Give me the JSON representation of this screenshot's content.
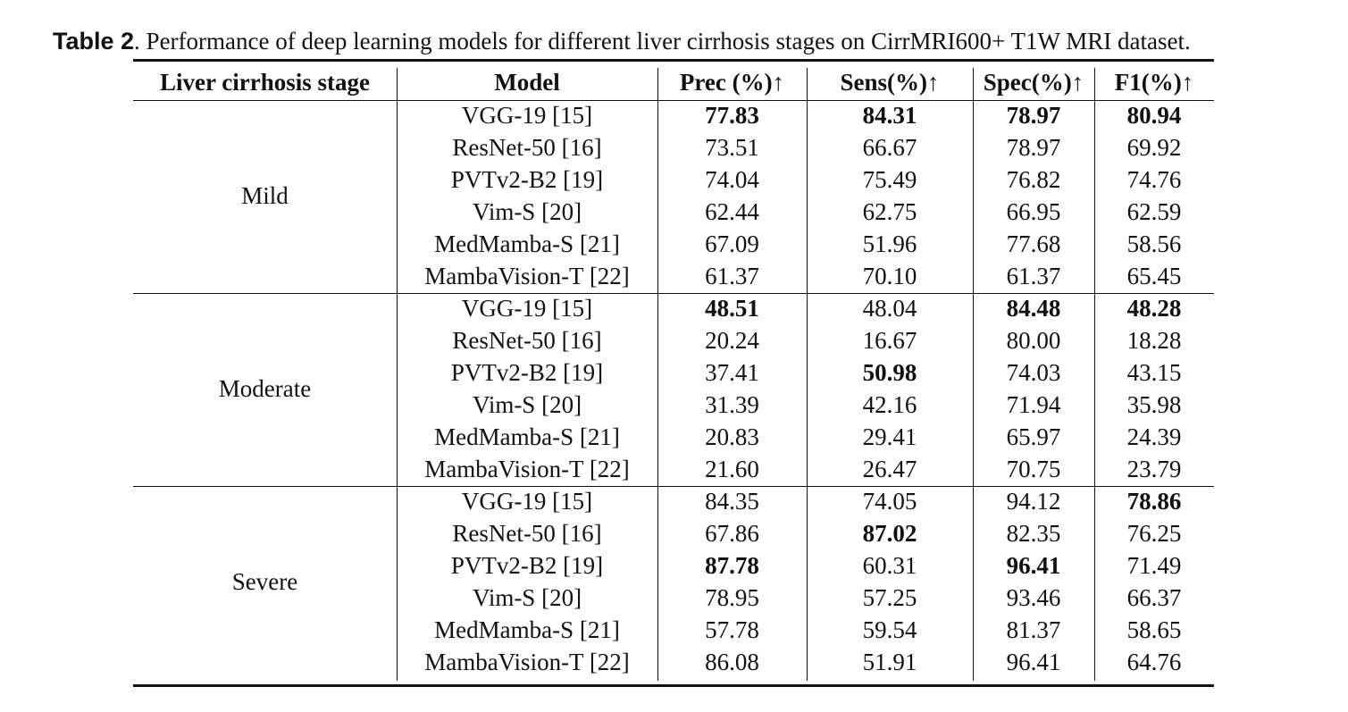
{
  "caption": {
    "label": "Table 2",
    "text": ". Performance of deep learning models for different liver cirrhosis stages on CirrMRI600+ T1W MRI dataset."
  },
  "table": {
    "headers": [
      "Liver cirrhosis stage",
      "Model",
      "Prec (%)↑",
      "Sens(%)↑",
      "Spec(%)↑",
      "F1(%)↑"
    ],
    "groups": [
      {
        "stage": "Mild",
        "rows": [
          {
            "model": "VGG-19 [15]",
            "values": [
              "77.83",
              "84.31",
              "78.97",
              "80.94"
            ],
            "bold": [
              true,
              true,
              true,
              true
            ]
          },
          {
            "model": "ResNet-50 [16]",
            "values": [
              "73.51",
              "66.67",
              "78.97",
              "69.92"
            ],
            "bold": [
              false,
              false,
              false,
              false
            ]
          },
          {
            "model": "PVTv2-B2 [19]",
            "values": [
              "74.04",
              "75.49",
              "76.82",
              "74.76"
            ],
            "bold": [
              false,
              false,
              false,
              false
            ]
          },
          {
            "model": "Vim-S [20]",
            "values": [
              "62.44",
              "62.75",
              "66.95",
              "62.59"
            ],
            "bold": [
              false,
              false,
              false,
              false
            ]
          },
          {
            "model": "MedMamba-S [21]",
            "values": [
              "67.09",
              "51.96",
              "77.68",
              "58.56"
            ],
            "bold": [
              false,
              false,
              false,
              false
            ]
          },
          {
            "model": "MambaVision-T [22]",
            "values": [
              "61.37",
              "70.10",
              "61.37",
              "65.45"
            ],
            "bold": [
              false,
              false,
              false,
              false
            ]
          }
        ]
      },
      {
        "stage": "Moderate",
        "rows": [
          {
            "model": "VGG-19 [15]",
            "values": [
              "48.51",
              "48.04",
              "84.48",
              "48.28"
            ],
            "bold": [
              true,
              false,
              true,
              true
            ]
          },
          {
            "model": "ResNet-50 [16]",
            "values": [
              "20.24",
              "16.67",
              "80.00",
              "18.28"
            ],
            "bold": [
              false,
              false,
              false,
              false
            ]
          },
          {
            "model": "PVTv2-B2 [19]",
            "values": [
              "37.41",
              "50.98",
              "74.03",
              "43.15"
            ],
            "bold": [
              false,
              true,
              false,
              false
            ]
          },
          {
            "model": "Vim-S [20]",
            "values": [
              "31.39",
              "42.16",
              "71.94",
              "35.98"
            ],
            "bold": [
              false,
              false,
              false,
              false
            ]
          },
          {
            "model": "MedMamba-S [21]",
            "values": [
              "20.83",
              "29.41",
              "65.97",
              "24.39"
            ],
            "bold": [
              false,
              false,
              false,
              false
            ]
          },
          {
            "model": "MambaVision-T [22]",
            "values": [
              "21.60",
              "26.47",
              "70.75",
              "23.79"
            ],
            "bold": [
              false,
              false,
              false,
              false
            ]
          }
        ]
      },
      {
        "stage": "Severe",
        "rows": [
          {
            "model": "VGG-19 [15]",
            "values": [
              "84.35",
              "74.05",
              "94.12",
              "78.86"
            ],
            "bold": [
              false,
              false,
              false,
              true
            ]
          },
          {
            "model": "ResNet-50 [16]",
            "values": [
              "67.86",
              "87.02",
              "82.35",
              "76.25"
            ],
            "bold": [
              false,
              true,
              false,
              false
            ]
          },
          {
            "model": "PVTv2-B2 [19]",
            "values": [
              "87.78",
              "60.31",
              "96.41",
              "71.49"
            ],
            "bold": [
              true,
              false,
              true,
              false
            ]
          },
          {
            "model": "Vim-S [20]",
            "values": [
              "78.95",
              "57.25",
              "93.46",
              "66.37"
            ],
            "bold": [
              false,
              false,
              false,
              false
            ]
          },
          {
            "model": "MedMamba-S [21]",
            "values": [
              "57.78",
              "59.54",
              "81.37",
              "58.65"
            ],
            "bold": [
              false,
              false,
              false,
              false
            ]
          },
          {
            "model": "MambaVision-T [22]",
            "values": [
              "86.08",
              "51.91",
              "96.41",
              "64.76"
            ],
            "bold": [
              false,
              false,
              false,
              false
            ]
          }
        ]
      }
    ]
  }
}
